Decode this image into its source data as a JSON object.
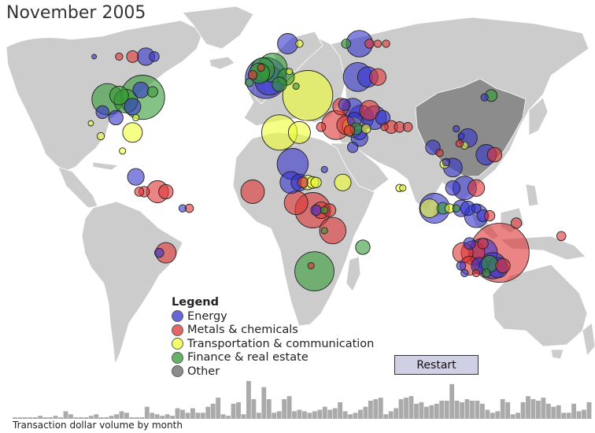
{
  "title": "November 2005",
  "legend": {
    "title": "Legend",
    "items": [
      {
        "label": "Energy",
        "color": "#3333cc"
      },
      {
        "label": "Metals & chemicals",
        "color": "#dd3333"
      },
      {
        "label": "Transportation & communication",
        "color": "#eeff33"
      },
      {
        "label": "Finance & real estate",
        "color": "#339933"
      },
      {
        "label": "Other",
        "color": "#666666"
      }
    ]
  },
  "restart_label": "Restart",
  "histogram": {
    "label": "Transaction dollar volume by month",
    "values": [
      1,
      1,
      1,
      1,
      1,
      2,
      1,
      1,
      2,
      1,
      5,
      3,
      1,
      1,
      1,
      2,
      3,
      1,
      1,
      2,
      3,
      5,
      4,
      1,
      1,
      1,
      8,
      4,
      3,
      2,
      3,
      2,
      7,
      6,
      4,
      7,
      4,
      4,
      8,
      10,
      14,
      3,
      2,
      10,
      11,
      3,
      25,
      13,
      4,
      21,
      13,
      4,
      5,
      13,
      15,
      5,
      6,
      5,
      4,
      5,
      6,
      8,
      6,
      7,
      11,
      5,
      3,
      4,
      6,
      8,
      12,
      13,
      14,
      3,
      5,
      7,
      13,
      14,
      15,
      10,
      11,
      8,
      9,
      10,
      12,
      12,
      23,
      12,
      11,
      13,
      12,
      12,
      10,
      6,
      4,
      5,
      13,
      11,
      3,
      4,
      11,
      15,
      13,
      12,
      14,
      10,
      8,
      9,
      4,
      4,
      10,
      5,
      6,
      11
    ]
  },
  "bubbles": [
    {
      "lon": -74,
      "lat": 41,
      "value": 1400,
      "category": "Finance & real estate"
    },
    {
      "lon": -95,
      "lat": 40,
      "value": 700,
      "category": "Finance & real estate"
    },
    {
      "lon": -84,
      "lat": 39,
      "value": 400,
      "category": "Finance & real estate"
    },
    {
      "lon": -88,
      "lat": 42,
      "value": 250,
      "category": "Finance & real estate"
    },
    {
      "lon": -80,
      "lat": 36,
      "value": 200,
      "category": "Energy"
    },
    {
      "lon": -75,
      "lat": 45,
      "value": 180,
      "category": "Energy"
    },
    {
      "lon": -68,
      "lat": 44,
      "value": 80,
      "category": "Finance & real estate"
    },
    {
      "lon": -90,
      "lat": 30,
      "value": 150,
      "category": "Energy"
    },
    {
      "lon": -98,
      "lat": 33,
      "value": 120,
      "category": "Energy"
    },
    {
      "lon": -78,
      "lat": 30,
      "value": 30,
      "category": "Transportation & communication"
    },
    {
      "lon": -105,
      "lat": 27,
      "value": 20,
      "category": "Transportation & communication"
    },
    {
      "lon": -72,
      "lat": 63,
      "value": 220,
      "category": "Energy"
    },
    {
      "lon": -80,
      "lat": 63,
      "value": 100,
      "category": "Metals & chemicals"
    },
    {
      "lon": -88,
      "lat": 63,
      "value": 40,
      "category": "Metals & chemicals"
    },
    {
      "lon": -103,
      "lat": 63,
      "value": 15,
      "category": "Energy"
    },
    {
      "lon": -67,
      "lat": 63,
      "value": 70,
      "category": "Energy"
    },
    {
      "lon": -80,
      "lat": 22,
      "value": 280,
      "category": "Transportation & communication"
    },
    {
      "lon": -99,
      "lat": 20,
      "value": 40,
      "category": "Transportation & communication"
    },
    {
      "lon": -86,
      "lat": 12,
      "value": 30,
      "category": "Transportation & communication"
    },
    {
      "lon": -78,
      "lat": -2,
      "value": 200,
      "category": "Energy"
    },
    {
      "lon": -65,
      "lat": -10,
      "value": 350,
      "category": "Metals & chemicals"
    },
    {
      "lon": -73,
      "lat": -10,
      "value": 80,
      "category": "Metals & chemicals"
    },
    {
      "lon": -76,
      "lat": -10,
      "value": 60,
      "category": "Metals & chemicals"
    },
    {
      "lon": -60,
      "lat": -10,
      "value": 150,
      "category": "Metals & chemicals"
    },
    {
      "lon": -50,
      "lat": -19,
      "value": 40,
      "category": "Energy"
    },
    {
      "lon": -46,
      "lat": -19,
      "value": 50,
      "category": "Metals & chemicals"
    },
    {
      "lon": -60,
      "lat": -43,
      "value": 300,
      "category": "Metals & chemicals"
    },
    {
      "lon": -64,
      "lat": -43,
      "value": 60,
      "category": "Energy"
    },
    {
      "lon": -0.1,
      "lat": 51.5,
      "value": 1200,
      "category": "Energy"
    },
    {
      "lon": 2,
      "lat": 50,
      "value": 600,
      "category": "Energy"
    },
    {
      "lon": 4,
      "lat": 57,
      "value": 600,
      "category": "Finance & real estate"
    },
    {
      "lon": -2,
      "lat": 56,
      "value": 400,
      "category": "Finance & real estate"
    },
    {
      "lon": -4,
      "lat": 54,
      "value": 300,
      "category": "Finance & real estate"
    },
    {
      "lon": 12,
      "lat": 52,
      "value": 200,
      "category": "Finance & real estate"
    },
    {
      "lon": 8,
      "lat": 48,
      "value": 150,
      "category": "Finance & real estate"
    },
    {
      "lon": -8,
      "lat": 53,
      "value": 60,
      "category": "Metals & chemicals"
    },
    {
      "lon": -10,
      "lat": 49,
      "value": 50,
      "category": "Finance & real estate"
    },
    {
      "lon": -3,
      "lat": 57,
      "value": 40,
      "category": "Metals & chemicals"
    },
    {
      "lon": 14,
      "lat": 55,
      "value": 30,
      "category": "Transportation & communication"
    },
    {
      "lon": 18,
      "lat": 47,
      "value": 30,
      "category": "Finance & real estate"
    },
    {
      "lon": 25,
      "lat": 42,
      "value": 1800,
      "category": "Transportation & communication"
    },
    {
      "lon": 13,
      "lat": 70,
      "value": 300,
      "category": "Energy"
    },
    {
      "lon": 20,
      "lat": 70,
      "value": 40,
      "category": "Transportation & communication"
    },
    {
      "lon": 56,
      "lat": 70,
      "value": 500,
      "category": "Energy"
    },
    {
      "lon": 48,
      "lat": 70,
      "value": 60,
      "category": "Finance & real estate"
    },
    {
      "lon": 62,
      "lat": 70,
      "value": 60,
      "category": "Metals & chemicals"
    },
    {
      "lon": 67,
      "lat": 70,
      "value": 40,
      "category": "Metals & chemicals"
    },
    {
      "lon": 72,
      "lat": 70,
      "value": 40,
      "category": "Metals & chemicals"
    },
    {
      "lon": 55,
      "lat": 52,
      "value": 600,
      "category": "Energy"
    },
    {
      "lon": 61,
      "lat": 52,
      "value": 300,
      "category": "Energy"
    },
    {
      "lon": 67,
      "lat": 52,
      "value": 200,
      "category": "Metals & chemicals"
    },
    {
      "lon": 45,
      "lat": 36,
      "value": 200,
      "category": "Metals & chemicals"
    },
    {
      "lon": 52,
      "lat": 35,
      "value": 300,
      "category": "Energy"
    },
    {
      "lon": 47,
      "lat": 37,
      "value": 100,
      "category": "Energy"
    },
    {
      "lon": 62,
      "lat": 34,
      "value": 280,
      "category": "Metals & chemicals"
    },
    {
      "lon": 57,
      "lat": 30,
      "value": 450,
      "category": "Energy"
    },
    {
      "lon": 65,
      "lat": 30,
      "value": 400,
      "category": "Energy"
    },
    {
      "lon": 70,
      "lat": 30,
      "value": 150,
      "category": "Energy"
    },
    {
      "lon": 53,
      "lat": 29,
      "value": 150,
      "category": "Energy"
    },
    {
      "lon": 42,
      "lat": 26,
      "value": 600,
      "category": "Metals & chemicals"
    },
    {
      "lon": 48,
      "lat": 26,
      "value": 250,
      "category": "Metals & chemicals"
    },
    {
      "lon": 52,
      "lat": 25,
      "value": 300,
      "category": "Transportation & communication"
    },
    {
      "lon": 54,
      "lat": 24,
      "value": 100,
      "category": "Finance & real estate"
    },
    {
      "lon": 56,
      "lat": 22,
      "value": 150,
      "category": "Energy"
    },
    {
      "lon": 60,
      "lat": 24,
      "value": 60,
      "category": "Transportation & communication"
    },
    {
      "lon": 50,
      "lat": 23,
      "value": 80,
      "category": "Metals & chemicals"
    },
    {
      "lon": 56,
      "lat": 19,
      "value": 200,
      "category": "Energy"
    },
    {
      "lon": 75,
      "lat": 25,
      "value": 120,
      "category": "Metals & chemicals"
    },
    {
      "lon": 80,
      "lat": 25,
      "value": 80,
      "category": "Metals & chemicals"
    },
    {
      "lon": 85,
      "lat": 25,
      "value": 60,
      "category": "Metals & chemicals"
    },
    {
      "lon": 71,
      "lat": 25,
      "value": 40,
      "category": "Metals & chemicals"
    },
    {
      "lon": 52,
      "lat": 14,
      "value": 80,
      "category": "Energy"
    },
    {
      "lon": 8,
      "lat": 22,
      "value": 900,
      "category": "Transportation & communication"
    },
    {
      "lon": 20,
      "lat": 22,
      "value": 350,
      "category": "Transportation & communication"
    },
    {
      "lon": 33,
      "lat": 25,
      "value": 60,
      "category": "Metals & chemicals"
    },
    {
      "lon": 16,
      "lat": 5,
      "value": 700,
      "category": "Energy"
    },
    {
      "lon": 15,
      "lat": -5,
      "value": 350,
      "category": "Energy"
    },
    {
      "lon": 20,
      "lat": -5,
      "value": 200,
      "category": "Energy"
    },
    {
      "lon": 25,
      "lat": -5,
      "value": 150,
      "category": "Transportation & communication"
    },
    {
      "lon": 28,
      "lat": -5,
      "value": 100,
      "category": "Transportation & communication"
    },
    {
      "lon": 30,
      "lat": -5,
      "value": 80,
      "category": "Transportation & communication"
    },
    {
      "lon": 22,
      "lat": -5,
      "value": 80,
      "category": "Metals & chemicals"
    },
    {
      "lon": 35,
      "lat": 2,
      "value": 30,
      "category": "Energy"
    },
    {
      "lon": 46,
      "lat": -5,
      "value": 200,
      "category": "Transportation & communication"
    },
    {
      "lon": -8,
      "lat": -10,
      "value": 400,
      "category": "Metals & chemicals"
    },
    {
      "lon": 18,
      "lat": -16,
      "value": 400,
      "category": "Metals & chemicals"
    },
    {
      "lon": 28,
      "lat": -20,
      "value": 900,
      "category": "Metals & chemicals"
    },
    {
      "lon": 33,
      "lat": -20,
      "value": 200,
      "category": "Metals & chemicals"
    },
    {
      "lon": 38,
      "lat": -20,
      "value": 120,
      "category": "Metals & chemicals"
    },
    {
      "lon": 30,
      "lat": -20,
      "value": 80,
      "category": "Energy"
    },
    {
      "lon": 35,
      "lat": -20,
      "value": 40,
      "category": "Finance & real estate"
    },
    {
      "lon": 40,
      "lat": -31,
      "value": 500,
      "category": "Metals & chemicals"
    },
    {
      "lon": 35,
      "lat": -31,
      "value": 30,
      "category": "Finance & real estate"
    },
    {
      "lon": 29,
      "lat": -53,
      "value": 1100,
      "category": "Finance & real estate"
    },
    {
      "lon": 27,
      "lat": -50,
      "value": 30,
      "category": "Metals & chemicals"
    },
    {
      "lon": 58,
      "lat": -40,
      "value": 150,
      "category": "Finance & real estate"
    },
    {
      "lon": 100,
      "lat": 14,
      "value": 150,
      "category": "Energy"
    },
    {
      "lon": 104,
      "lat": 11,
      "value": 40,
      "category": "Metals & chemicals"
    },
    {
      "lon": 108,
      "lat": 6,
      "value": 40,
      "category": "Energy"
    },
    {
      "lon": 112,
      "lat": 3,
      "value": 250,
      "category": "Energy"
    },
    {
      "lon": 107,
      "lat": 5,
      "value": 60,
      "category": "Transportation & communication"
    },
    {
      "lon": 112,
      "lat": -8,
      "value": 150,
      "category": "Energy"
    },
    {
      "lon": 119,
      "lat": -8,
      "value": 400,
      "category": "Energy"
    },
    {
      "lon": 126,
      "lat": -8,
      "value": 200,
      "category": "Metals & chemicals"
    },
    {
      "lon": 121,
      "lat": -19,
      "value": 150,
      "category": "Energy"
    },
    {
      "lon": 126,
      "lat": -19,
      "value": 60,
      "category": "Energy"
    },
    {
      "lon": 101,
      "lat": -19,
      "value": 650,
      "category": "Energy"
    },
    {
      "lon": 98,
      "lat": -19,
      "value": 250,
      "category": "Transportation & communication"
    },
    {
      "lon": 106,
      "lat": -19,
      "value": 100,
      "category": "Finance & real estate"
    },
    {
      "lon": 110,
      "lat": -19,
      "value": 60,
      "category": "Transportation & communication"
    },
    {
      "lon": 114,
      "lat": -19,
      "value": 40,
      "category": "Finance & real estate"
    },
    {
      "lon": 117,
      "lat": -19,
      "value": 200,
      "category": "Energy"
    },
    {
      "lon": 126,
      "lat": -23,
      "value": 400,
      "category": "Energy"
    },
    {
      "lon": 130,
      "lat": -23,
      "value": 100,
      "category": "Energy"
    },
    {
      "lon": 134,
      "lat": -23,
      "value": 80,
      "category": "Metals & chemicals"
    },
    {
      "lon": 150,
      "lat": -27,
      "value": 80,
      "category": "Metals & chemicals"
    },
    {
      "lon": 80,
      "lat": -8,
      "value": 40,
      "category": "Transportation & communication"
    },
    {
      "lon": 82,
      "lat": -8,
      "value": 30,
      "category": "Transportation & communication"
    },
    {
      "lon": 114,
      "lat": 24,
      "value": 30,
      "category": "Energy"
    },
    {
      "lon": 117,
      "lat": 20,
      "value": 30,
      "category": "Energy"
    },
    {
      "lon": 121,
      "lat": 19,
      "value": 250,
      "category": "Energy"
    },
    {
      "lon": 119,
      "lat": 15,
      "value": 40,
      "category": "Transportation & communication"
    },
    {
      "lon": 116,
      "lat": 16,
      "value": 40,
      "category": "Metals & chemicals"
    },
    {
      "lon": 132,
      "lat": 10,
      "value": 300,
      "category": "Energy"
    },
    {
      "lon": 137,
      "lat": 10,
      "value": 150,
      "category": "Metals & chemicals"
    },
    {
      "lon": 135,
      "lat": 42,
      "value": 100,
      "category": "Finance & real estate"
    },
    {
      "lon": 131,
      "lat": 41,
      "value": 40,
      "category": "Energy"
    },
    {
      "lon": 140,
      "lat": -43,
      "value": 2500,
      "category": "Metals & chemicals"
    },
    {
      "lon": 130,
      "lat": -43,
      "value": 600,
      "category": "Energy"
    },
    {
      "lon": 124,
      "lat": -43,
      "value": 400,
      "category": "Metals & chemicals"
    },
    {
      "lon": 118,
      "lat": -43,
      "value": 300,
      "category": "Metals & chemicals"
    },
    {
      "lon": 122,
      "lat": -50,
      "value": 250,
      "category": "Metals & chemicals"
    },
    {
      "lon": 128,
      "lat": -50,
      "value": 200,
      "category": "Energy"
    },
    {
      "lon": 136,
      "lat": -50,
      "value": 500,
      "category": "Energy"
    },
    {
      "lon": 134,
      "lat": -49,
      "value": 200,
      "category": "Finance & real estate"
    },
    {
      "lon": 139,
      "lat": -51,
      "value": 300,
      "category": "Energy"
    },
    {
      "lon": 132,
      "lat": -54,
      "value": 50,
      "category": "Finance & real estate"
    },
    {
      "lon": 126,
      "lat": -54,
      "value": 40,
      "category": "Metals & chemicals"
    },
    {
      "lon": 119,
      "lat": -54,
      "value": 40,
      "category": "Energy"
    },
    {
      "lon": 117,
      "lat": -50,
      "value": 60,
      "category": "Energy"
    },
    {
      "lon": 142,
      "lat": -50,
      "value": 150,
      "category": "Metals & chemicals"
    },
    {
      "lon": 122,
      "lat": -38,
      "value": 100,
      "category": "Energy"
    },
    {
      "lon": 130,
      "lat": -38,
      "value": 80,
      "category": "Metals & chemicals"
    },
    {
      "lon": 177,
      "lat": -34,
      "value": 60,
      "category": "Metals & chemicals"
    }
  ]
}
